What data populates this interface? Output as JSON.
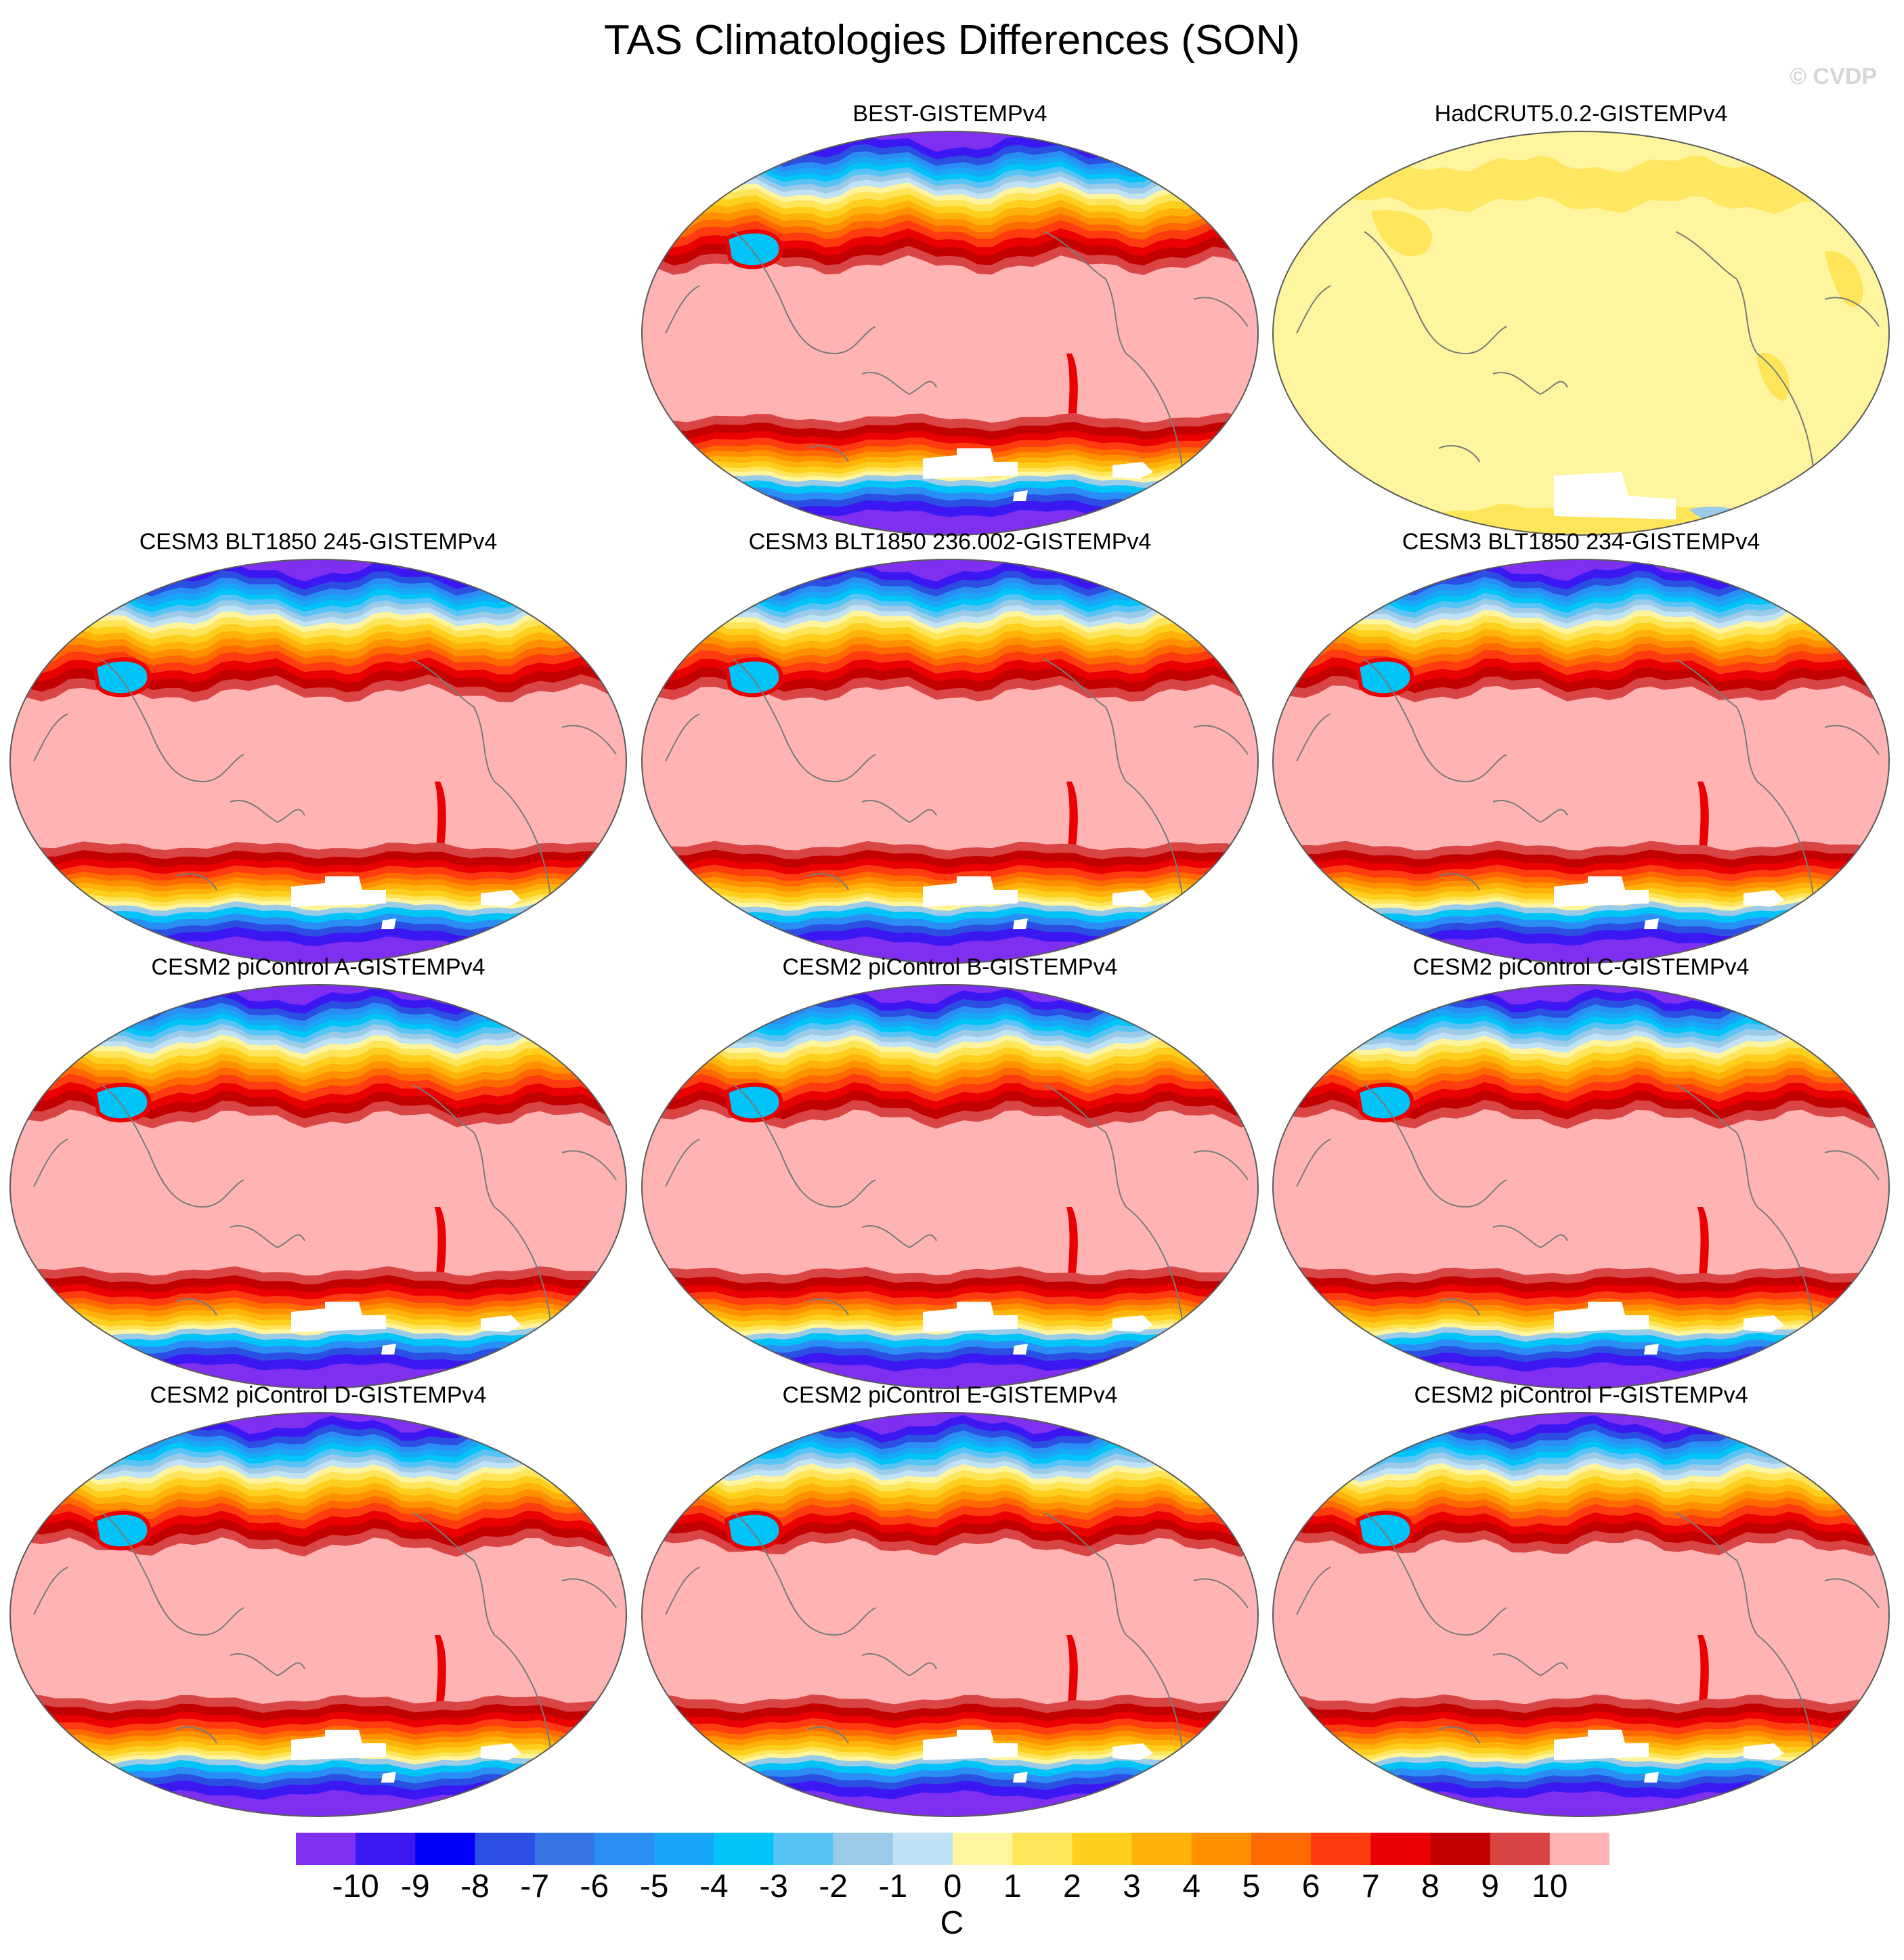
{
  "chart_data": {
    "type": "map",
    "title": "TAS Climatologies Differences (SON)",
    "watermark": "© CVDP",
    "projection": "Robinson (Pacific-centered)",
    "colorbar": {
      "units": "C",
      "levels": [
        -10,
        -9,
        -8,
        -7,
        -6,
        -5,
        -4,
        -3,
        -2,
        -1,
        0,
        1,
        2,
        3,
        4,
        5,
        6,
        7,
        8,
        9,
        10
      ],
      "tick_labels": [
        "-10",
        "-9",
        "-8",
        "-7",
        "-6",
        "-5",
        "-4",
        "-3",
        "-2",
        "-1",
        "0",
        "1",
        "2",
        "3",
        "4",
        "5",
        "6",
        "7",
        "8",
        "9",
        "10"
      ],
      "colors": [
        "#7f2ff0",
        "#3b17f2",
        "#0000f6",
        "#2b4fe2",
        "#3575e3",
        "#2b8ef4",
        "#1aa6f7",
        "#00c4f7",
        "#58c4f5",
        "#9bcbe9",
        "#c1e2f5",
        "#fff59e",
        "#ffe55a",
        "#ffcf1f",
        "#ffb20a",
        "#ff9000",
        "#ff6a00",
        "#ff3b10",
        "#ea0000",
        "#c20000",
        "#d94545",
        "#ffb3b3"
      ]
    },
    "panels": [
      {
        "title": "BEST-GISTEMPv4",
        "pattern": "polar"
      },
      {
        "title": "HadCRUT5.0.2-GISTEMPv4",
        "pattern": "near-zero"
      },
      {
        "title": "CESM3 BLT1850 245-GISTEMPv4",
        "pattern": "polar"
      },
      {
        "title": "CESM3 BLT1850 236.002-GISTEMPv4",
        "pattern": "polar"
      },
      {
        "title": "CESM3 BLT1850 234-GISTEMPv4",
        "pattern": "polar"
      },
      {
        "title": "CESM2 piControl A-GISTEMPv4",
        "pattern": "polar"
      },
      {
        "title": "CESM2 piControl B-GISTEMPv4",
        "pattern": "polar"
      },
      {
        "title": "CESM2 piControl C-GISTEMPv4",
        "pattern": "polar"
      },
      {
        "title": "CESM2 piControl D-GISTEMPv4",
        "pattern": "polar"
      },
      {
        "title": "CESM2 piControl E-GISTEMPv4",
        "pattern": "polar"
      },
      {
        "title": "CESM2 piControl F-GISTEMPv4",
        "pattern": "polar"
      }
    ]
  }
}
